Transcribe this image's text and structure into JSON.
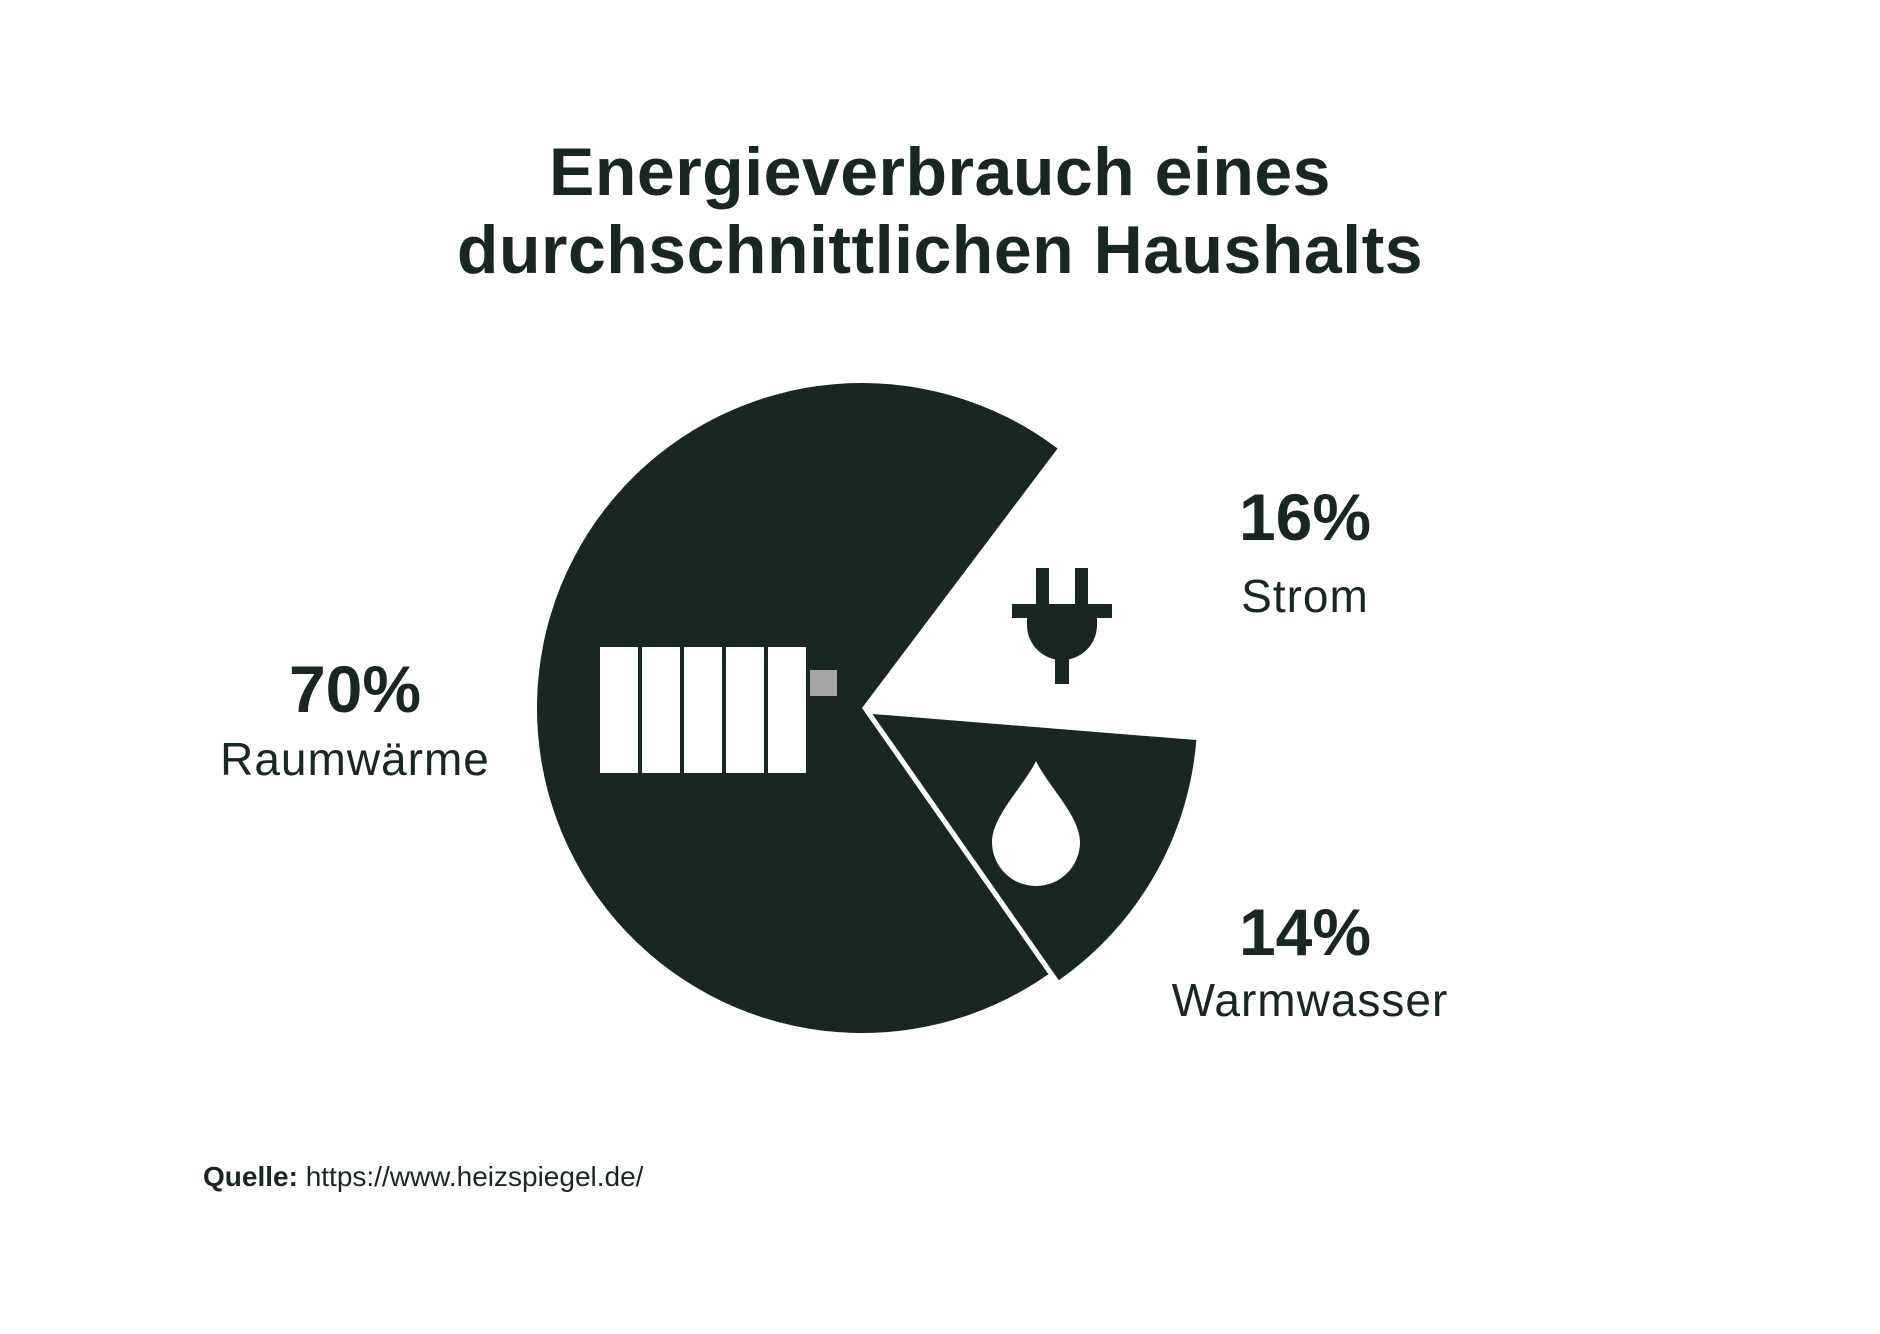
{
  "colors": {
    "slice": "#182820",
    "background": "#ffffff",
    "icon": "#ffffff",
    "radiator_valve": "#a6a6a6"
  },
  "chart_data": {
    "type": "pie",
    "title": [
      "Energieverbrauch eines",
      "durchschnittlichen Haushalts"
    ],
    "slices": [
      {
        "label": "Raumwärme",
        "value": 70,
        "value_label": "70%",
        "icon": "radiator-icon",
        "exploded": false,
        "filled": true
      },
      {
        "label": "Strom",
        "value": 16,
        "value_label": "16%",
        "icon": "plug-icon",
        "exploded": false,
        "filled": false
      },
      {
        "label": "Warmwasser",
        "value": 14,
        "value_label": "14%",
        "icon": "water-drop-icon",
        "exploded": true,
        "filled": true
      }
    ]
  },
  "source": {
    "label": "Quelle:",
    "url": "https://www.heizspiegel.de/"
  }
}
